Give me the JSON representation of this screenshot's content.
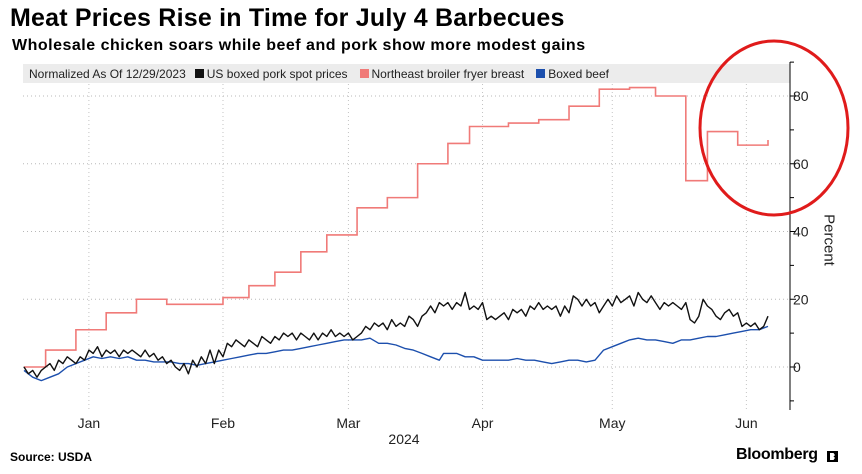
{
  "chart_data": {
    "type": "line",
    "title": "Meat Prices Rise in Time for July 4 Barbecues",
    "subtitle": "Wholesale chicken soars while beef and pork show more modest gains",
    "normalization_label": "Normalized As Of 12/29/2023",
    "ylabel": "Percent",
    "xlabel": "2024",
    "ylim": [
      -12,
      90
    ],
    "yticks": [
      0,
      20,
      40,
      60,
      80
    ],
    "xlim": [
      0,
      181
    ],
    "xticks": [
      {
        "x": 15,
        "label": "Jan"
      },
      {
        "x": 46,
        "label": "Feb"
      },
      {
        "x": 75,
        "label": "Mar"
      },
      {
        "x": 106,
        "label": "Apr"
      },
      {
        "x": 136,
        "label": "May"
      },
      {
        "x": 167,
        "label": "Jun"
      }
    ],
    "source": "Source: USDA",
    "brand": "Bloomberg",
    "series": [
      {
        "name": "Northeast broiler fryer breast",
        "color": "#f07a78",
        "steps": [
          [
            0,
            0
          ],
          [
            5,
            5
          ],
          [
            12,
            11
          ],
          [
            19,
            16
          ],
          [
            26,
            20
          ],
          [
            33,
            18.5
          ],
          [
            46,
            20.5
          ],
          [
            52,
            24
          ],
          [
            58,
            28
          ],
          [
            64,
            34
          ],
          [
            70,
            39
          ],
          [
            77,
            47
          ],
          [
            84,
            50
          ],
          [
            91,
            60
          ],
          [
            98,
            66
          ],
          [
            103,
            71
          ],
          [
            112,
            72
          ],
          [
            119,
            73
          ],
          [
            126,
            77
          ],
          [
            133,
            82
          ],
          [
            140,
            82.5
          ],
          [
            146,
            80
          ],
          [
            152,
            80
          ],
          [
            153,
            55
          ],
          [
            157,
            55
          ],
          [
            158,
            69.5
          ],
          [
            164,
            69.5
          ],
          [
            165,
            65.5
          ],
          [
            171,
            65.5
          ],
          [
            171.5,
            65.5
          ],
          [
            172,
            67
          ]
        ]
      },
      {
        "name": "US boxed pork spot prices",
        "color": "#111111",
        "points": [
          [
            0,
            0
          ],
          [
            1,
            -2
          ],
          [
            2,
            -1
          ],
          [
            3,
            -3
          ],
          [
            4,
            -1
          ],
          [
            5,
            0
          ],
          [
            6,
            1
          ],
          [
            7,
            -1
          ],
          [
            8,
            2
          ],
          [
            9,
            1
          ],
          [
            10,
            3
          ],
          [
            11,
            2
          ],
          [
            12,
            1
          ],
          [
            13,
            3
          ],
          [
            14,
            2
          ],
          [
            15,
            5
          ],
          [
            16,
            4
          ],
          [
            17,
            6
          ],
          [
            18,
            3
          ],
          [
            19,
            5
          ],
          [
            20,
            4
          ],
          [
            21,
            5
          ],
          [
            22,
            3
          ],
          [
            23,
            5
          ],
          [
            24,
            4
          ],
          [
            25,
            5
          ],
          [
            26,
            4
          ],
          [
            27,
            3
          ],
          [
            28,
            5
          ],
          [
            29,
            3
          ],
          [
            30,
            4
          ],
          [
            31,
            2
          ],
          [
            32,
            3
          ],
          [
            33,
            1
          ],
          [
            34,
            2
          ],
          [
            35,
            0
          ],
          [
            36,
            -1
          ],
          [
            37,
            1
          ],
          [
            38,
            -2
          ],
          [
            39,
            2
          ],
          [
            40,
            0
          ],
          [
            41,
            3
          ],
          [
            42,
            1
          ],
          [
            43,
            5
          ],
          [
            44,
            1
          ],
          [
            45,
            5
          ],
          [
            46,
            3
          ],
          [
            47,
            7
          ],
          [
            48,
            6
          ],
          [
            49,
            8
          ],
          [
            50,
            7
          ],
          [
            51,
            6
          ],
          [
            52,
            8
          ],
          [
            53,
            7
          ],
          [
            54,
            6
          ],
          [
            55,
            9
          ],
          [
            56,
            8
          ],
          [
            57,
            7
          ],
          [
            58,
            9
          ],
          [
            59,
            8
          ],
          [
            60,
            10
          ],
          [
            61,
            9
          ],
          [
            62,
            10
          ],
          [
            63,
            8
          ],
          [
            64,
            10
          ],
          [
            65,
            9
          ],
          [
            66,
            8
          ],
          [
            67,
            10
          ],
          [
            68,
            8
          ],
          [
            69,
            10
          ],
          [
            70,
            9
          ],
          [
            71,
            11
          ],
          [
            72,
            9
          ],
          [
            73,
            10
          ],
          [
            74,
            9
          ],
          [
            75,
            10
          ],
          [
            76,
            8
          ],
          [
            77,
            9
          ],
          [
            78,
            10
          ],
          [
            79,
            12
          ],
          [
            80,
            11
          ],
          [
            81,
            13
          ],
          [
            82,
            12
          ],
          [
            83,
            13
          ],
          [
            84,
            11
          ],
          [
            85,
            14
          ],
          [
            86,
            12
          ],
          [
            87,
            13
          ],
          [
            88,
            12
          ],
          [
            89,
            15
          ],
          [
            90,
            14
          ],
          [
            91,
            12
          ],
          [
            92,
            15
          ],
          [
            93,
            16
          ],
          [
            94,
            18
          ],
          [
            95,
            16
          ],
          [
            96,
            19
          ],
          [
            97,
            18
          ],
          [
            98,
            19
          ],
          [
            99,
            17
          ],
          [
            100,
            19
          ],
          [
            101,
            18
          ],
          [
            102,
            22
          ],
          [
            103,
            17
          ],
          [
            104,
            18
          ],
          [
            105,
            17
          ],
          [
            106,
            19
          ],
          [
            107,
            14
          ],
          [
            108,
            15
          ],
          [
            109,
            14
          ],
          [
            110,
            15
          ],
          [
            111,
            16
          ],
          [
            112,
            14
          ],
          [
            113,
            17
          ],
          [
            114,
            16
          ],
          [
            115,
            17
          ],
          [
            116,
            15
          ],
          [
            117,
            18
          ],
          [
            118,
            17
          ],
          [
            119,
            19
          ],
          [
            120,
            17
          ],
          [
            121,
            18
          ],
          [
            122,
            17
          ],
          [
            123,
            18
          ],
          [
            124,
            15
          ],
          [
            125,
            18
          ],
          [
            126,
            16
          ],
          [
            127,
            21
          ],
          [
            128,
            20
          ],
          [
            129,
            18
          ],
          [
            130,
            20
          ],
          [
            131,
            18
          ],
          [
            132,
            19
          ],
          [
            133,
            16
          ],
          [
            134,
            18
          ],
          [
            135,
            20
          ],
          [
            136,
            18
          ],
          [
            137,
            21
          ],
          [
            138,
            19
          ],
          [
            139,
            20
          ],
          [
            140,
            21
          ],
          [
            141,
            18
          ],
          [
            142,
            22
          ],
          [
            143,
            20
          ],
          [
            144,
            19
          ],
          [
            145,
            21
          ],
          [
            146,
            19
          ],
          [
            147,
            17
          ],
          [
            148,
            19
          ],
          [
            149,
            18
          ],
          [
            150,
            19
          ],
          [
            151,
            18
          ],
          [
            152,
            17
          ],
          [
            153,
            19
          ],
          [
            154,
            14
          ],
          [
            155,
            13
          ],
          [
            156,
            15
          ],
          [
            157,
            20
          ],
          [
            158,
            18
          ],
          [
            159,
            17
          ],
          [
            160,
            15
          ],
          [
            161,
            14
          ],
          [
            162,
            16
          ],
          [
            163,
            17
          ],
          [
            164,
            15
          ],
          [
            165,
            16
          ],
          [
            166,
            12
          ],
          [
            167,
            13
          ],
          [
            168,
            12
          ],
          [
            169,
            13
          ],
          [
            170,
            11
          ],
          [
            171,
            12
          ],
          [
            172,
            15
          ]
        ]
      },
      {
        "name": "Boxed beef",
        "color": "#1c4fad",
        "points": [
          [
            0,
            -1
          ],
          [
            2,
            -3
          ],
          [
            4,
            -4
          ],
          [
            6,
            -3
          ],
          [
            8,
            -2
          ],
          [
            10,
            0
          ],
          [
            12,
            1
          ],
          [
            14,
            2
          ],
          [
            16,
            3
          ],
          [
            18,
            2.5
          ],
          [
            20,
            3
          ],
          [
            22,
            2.5
          ],
          [
            24,
            3
          ],
          [
            26,
            2
          ],
          [
            28,
            2
          ],
          [
            30,
            1.5
          ],
          [
            32,
            1.5
          ],
          [
            34,
            1.5
          ],
          [
            36,
            1
          ],
          [
            38,
            1
          ],
          [
            40,
            0.5
          ],
          [
            42,
            1
          ],
          [
            44,
            1.5
          ],
          [
            46,
            2
          ],
          [
            48,
            2.5
          ],
          [
            50,
            3
          ],
          [
            52,
            3.5
          ],
          [
            54,
            4
          ],
          [
            56,
            4
          ],
          [
            58,
            4.5
          ],
          [
            60,
            5
          ],
          [
            62,
            5
          ],
          [
            64,
            5.5
          ],
          [
            66,
            6
          ],
          [
            68,
            6.5
          ],
          [
            70,
            7
          ],
          [
            72,
            7.5
          ],
          [
            74,
            8
          ],
          [
            76,
            8
          ],
          [
            78,
            8
          ],
          [
            80,
            8.5
          ],
          [
            82,
            7
          ],
          [
            84,
            7
          ],
          [
            86,
            6.5
          ],
          [
            88,
            5.5
          ],
          [
            90,
            5
          ],
          [
            92,
            4
          ],
          [
            94,
            3
          ],
          [
            96,
            2
          ],
          [
            97,
            4
          ],
          [
            98,
            4
          ],
          [
            100,
            4
          ],
          [
            102,
            3
          ],
          [
            104,
            3
          ],
          [
            106,
            2
          ],
          [
            108,
            2
          ],
          [
            110,
            2
          ],
          [
            112,
            2
          ],
          [
            114,
            2.5
          ],
          [
            116,
            2
          ],
          [
            118,
            2
          ],
          [
            120,
            1.5
          ],
          [
            122,
            1
          ],
          [
            124,
            1.5
          ],
          [
            126,
            2
          ],
          [
            128,
            2
          ],
          [
            130,
            1.5
          ],
          [
            132,
            2
          ],
          [
            134,
            5
          ],
          [
            136,
            6
          ],
          [
            138,
            7
          ],
          [
            140,
            8
          ],
          [
            142,
            8.5
          ],
          [
            144,
            8
          ],
          [
            146,
            8
          ],
          [
            148,
            7.5
          ],
          [
            150,
            7
          ],
          [
            152,
            8
          ],
          [
            154,
            8
          ],
          [
            156,
            8.5
          ],
          [
            158,
            9
          ],
          [
            160,
            9
          ],
          [
            162,
            9.5
          ],
          [
            164,
            10
          ],
          [
            166,
            10.5
          ],
          [
            168,
            11
          ],
          [
            170,
            11
          ],
          [
            172,
            12
          ]
        ]
      }
    ],
    "annotation": "red-circle-highlight"
  },
  "legend_items": [
    {
      "label": "US boxed pork spot prices",
      "color": "#111111"
    },
    {
      "label": "Northeast broiler fryer breast",
      "color": "#f07a78"
    },
    {
      "label": "Boxed beef",
      "color": "#1c4fad"
    }
  ]
}
